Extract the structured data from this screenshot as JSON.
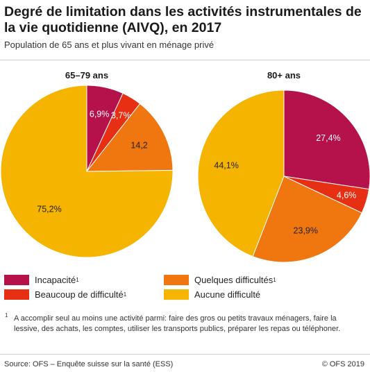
{
  "title": "Degré de limitation dans les activités instrumentales de la vie quotidienne (AIVQ), en 2017",
  "subtitle": "Population de 65 ans et plus vivant en ménage privé",
  "chart_data": [
    {
      "type": "pie",
      "title": "65–79 ans",
      "categories": [
        "Incapacité",
        "Beaucoup de difficulté",
        "Quelques difficultés",
        "Aucune difficulté"
      ],
      "values": [
        6.9,
        3.7,
        14.2,
        75.2
      ],
      "labels": [
        "6,9%",
        "3,7%",
        "14,2",
        "75,2%"
      ],
      "colors": [
        "#b5124b",
        "#e62f13",
        "#f0760f",
        "#f5b400"
      ]
    },
    {
      "type": "pie",
      "title": "80+ ans",
      "categories": [
        "Incapacité",
        "Beaucoup de difficulté",
        "Quelques difficultés",
        "Aucune difficulté"
      ],
      "values": [
        27.4,
        4.6,
        23.9,
        44.1
      ],
      "labels": [
        "27,4%",
        "4,6%",
        "23,9%",
        "44,1%"
      ],
      "colors": [
        "#b5124b",
        "#e62f13",
        "#f0760f",
        "#f5b400"
      ]
    }
  ],
  "legend": [
    {
      "label": "Incapacité",
      "sup": "1",
      "color": "#b5124b"
    },
    {
      "label": "Beaucoup de difficulté",
      "sup": "1",
      "color": "#e62f13"
    },
    {
      "label": "Quelques difficultés",
      "sup": "1",
      "color": "#f0760f"
    },
    {
      "label": "Aucune difficulté",
      "sup": "",
      "color": "#f5b400"
    }
  ],
  "footnote_mark": "1",
  "footnote": "A accomplir seul au moins une activité parmi: faire des gros ou petits travaux ménagers, faire la lessive, des achats, les comptes, utiliser les transports publics, préparer les repas ou téléphoner.",
  "source": "Source: OFS – Enquête suisse sur la santé (ESS)",
  "copyright": "© OFS 2019"
}
